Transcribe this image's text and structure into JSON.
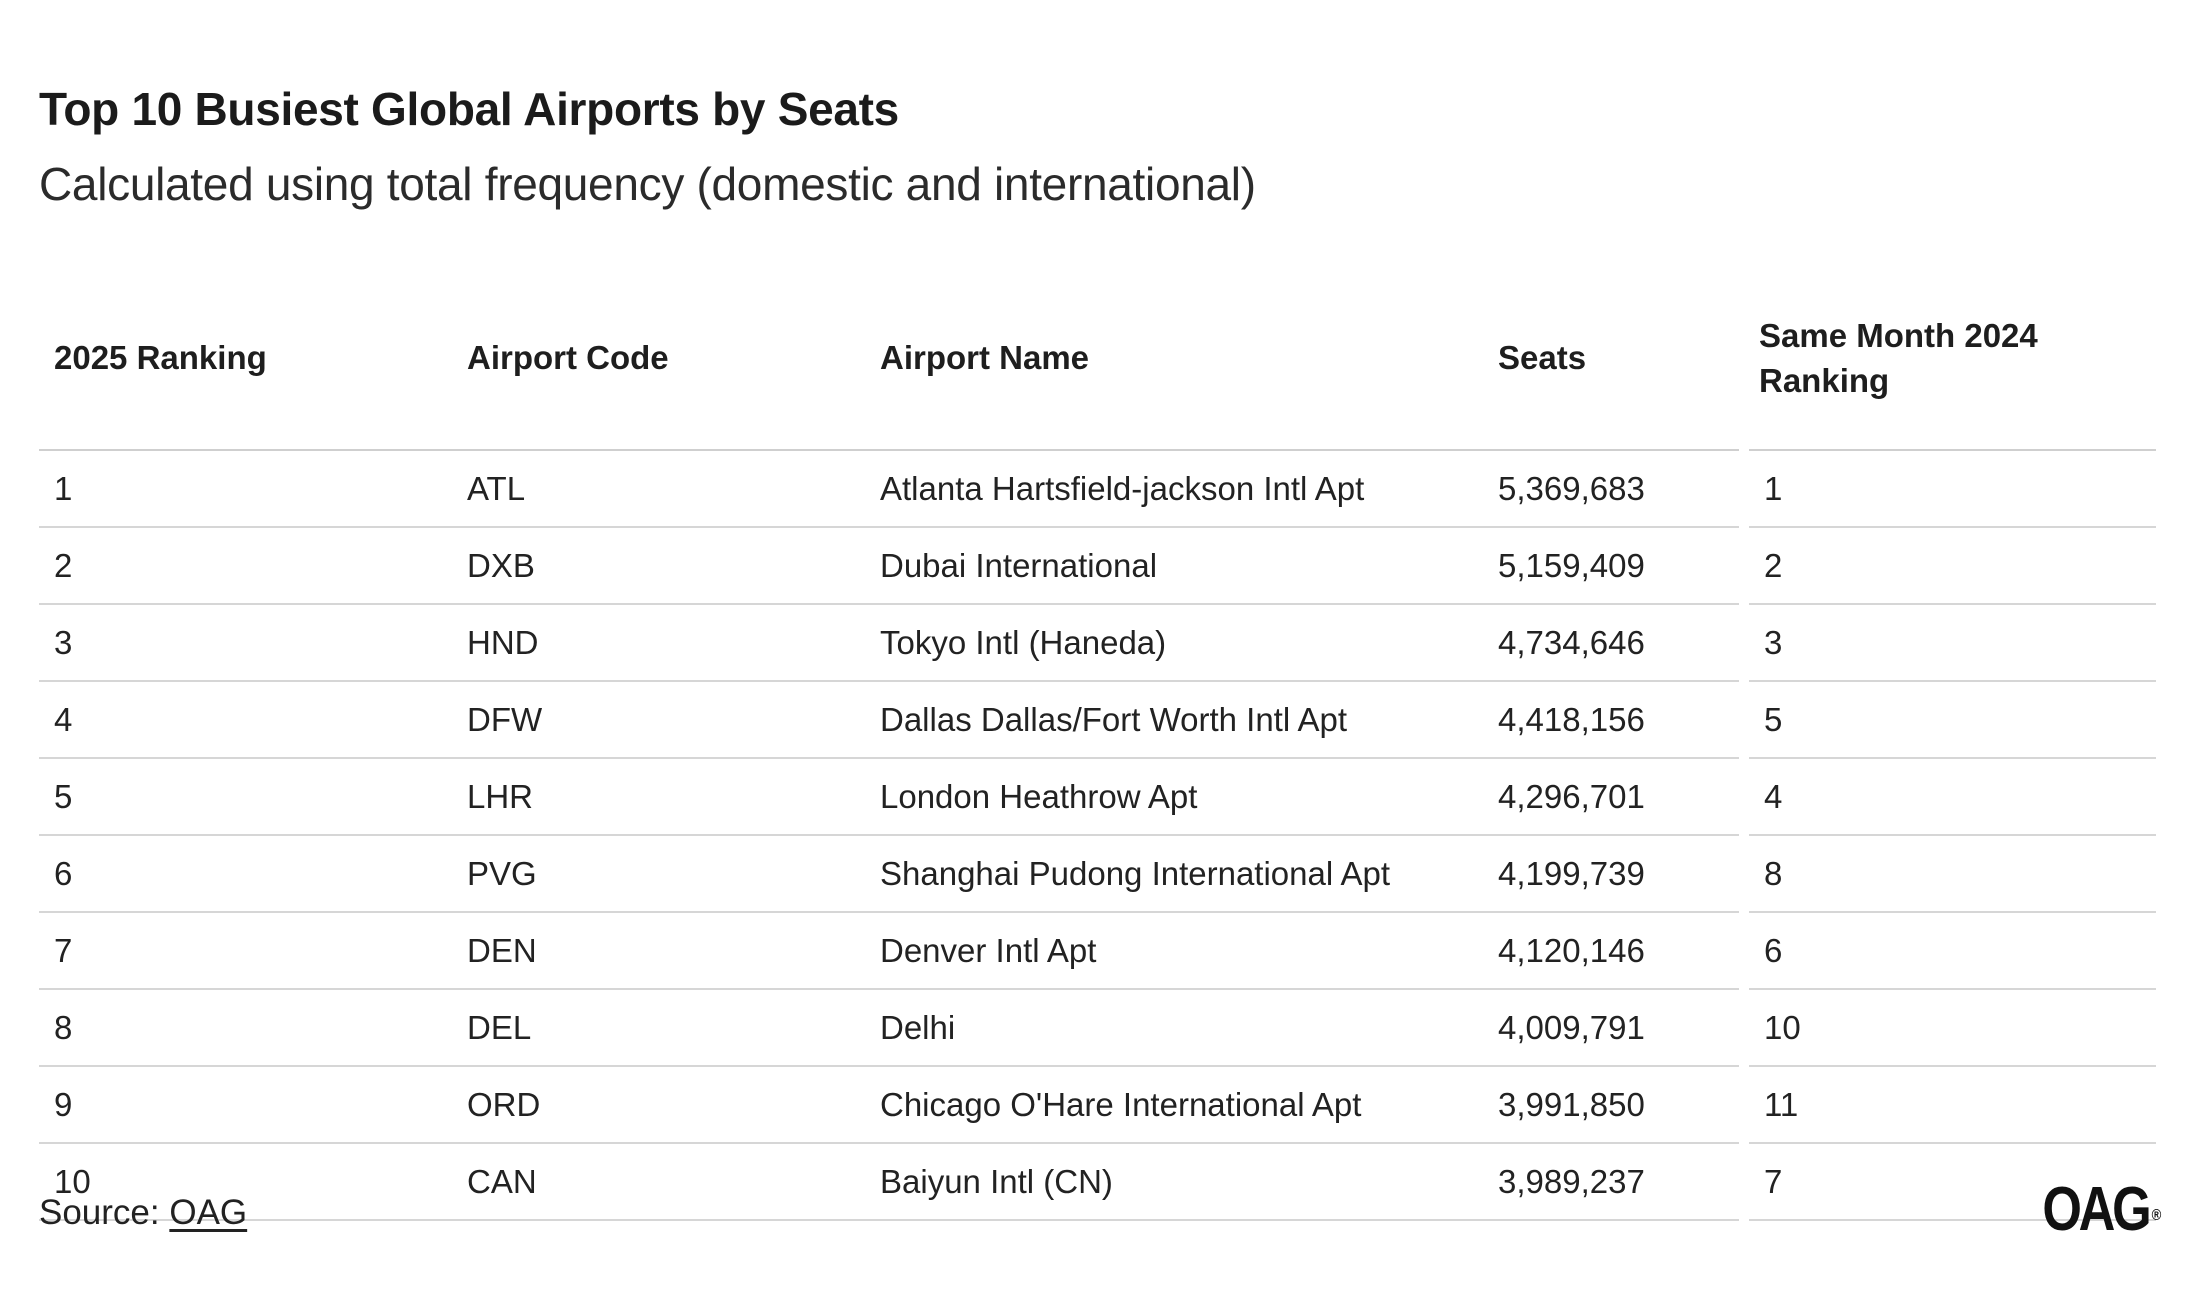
{
  "chart_data": {
    "type": "table",
    "title": "Top 10 Busiest Global Airports by Seats",
    "subtitle": "Calculated using total frequency (domestic and international)",
    "columns": [
      "2025 Ranking",
      "Airport Code",
      "Airport Name",
      "Seats",
      "Same Month 2024 Ranking"
    ],
    "rows": [
      [
        "1",
        "ATL",
        "Atlanta Hartsfield-jackson Intl Apt",
        "5,369,683",
        "1"
      ],
      [
        "2",
        "DXB",
        "Dubai International",
        "5,159,409",
        "2"
      ],
      [
        "3",
        "HND",
        "Tokyo Intl (Haneda)",
        "4,734,646",
        "3"
      ],
      [
        "4",
        "DFW",
        "Dallas Dallas/Fort Worth Intl Apt",
        "4,418,156",
        "5"
      ],
      [
        "5",
        "LHR",
        "London Heathrow Apt",
        "4,296,701",
        "4"
      ],
      [
        "6",
        "PVG",
        "Shanghai Pudong International Apt",
        "4,199,739",
        "8"
      ],
      [
        "7",
        "DEN",
        "Denver Intl Apt",
        "4,120,146",
        "6"
      ],
      [
        "8",
        "DEL",
        "Delhi",
        "4,009,791",
        "10"
      ],
      [
        "9",
        "ORD",
        "Chicago O'Hare International Apt",
        "3,991,850",
        "11"
      ],
      [
        "10",
        "CAN",
        "Baiyun Intl (CN)",
        "3,989,237",
        "7"
      ]
    ]
  },
  "footer": {
    "source_prefix": "Source: ",
    "source_link": "OAG"
  },
  "brand": {
    "logo_text": "OAG",
    "logo_mark": "®"
  }
}
